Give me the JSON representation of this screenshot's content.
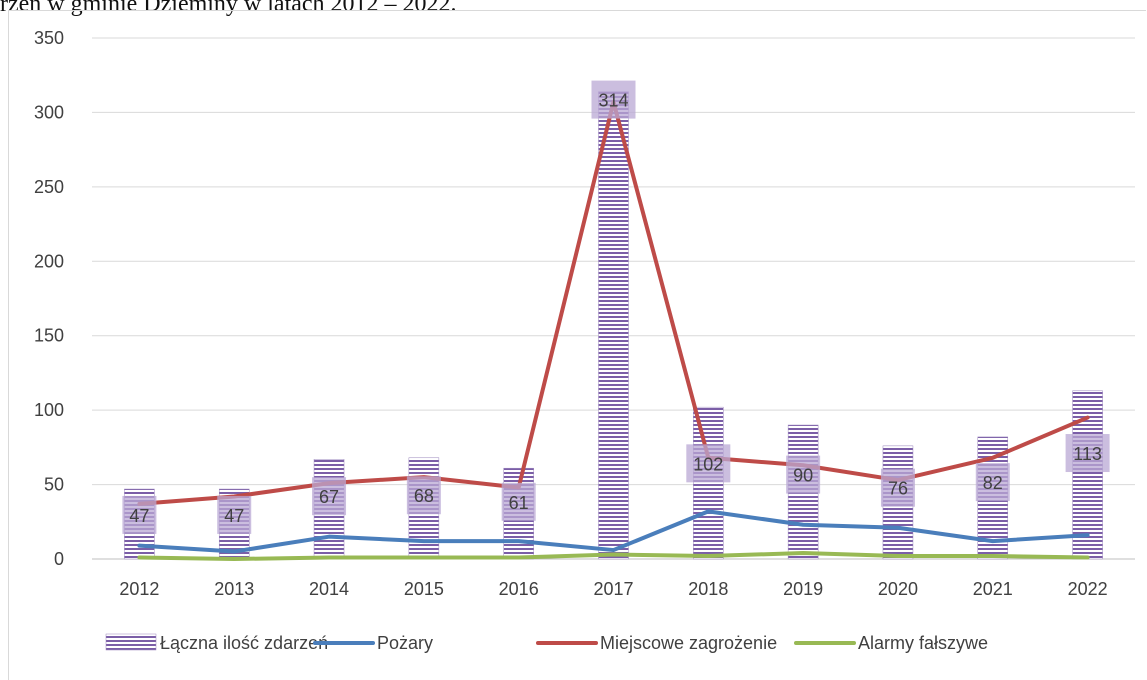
{
  "caption": "rzeń w gminie Dzieminy w latach 2012 – 2022.",
  "chart_data": {
    "type": "bar",
    "categories": [
      "2012",
      "2013",
      "2014",
      "2015",
      "2016",
      "2017",
      "2018",
      "2019",
      "2020",
      "2021",
      "2022"
    ],
    "ylim": [
      0,
      350
    ],
    "yticks": [
      0,
      50,
      100,
      150,
      200,
      250,
      300,
      350
    ],
    "grid": true,
    "legend_position": "bottom",
    "series": [
      {
        "name": "Łączna ilość zdarzeń",
        "kind": "bar",
        "color": "#7b5ea7",
        "values": [
          47,
          47,
          67,
          68,
          61,
          314,
          102,
          90,
          76,
          82,
          113
        ],
        "labels": [
          "47",
          "47",
          "67",
          "68",
          "61",
          "314",
          "102",
          "90",
          "76",
          "82",
          "113"
        ]
      },
      {
        "name": "Pożary",
        "kind": "line",
        "color": "#4a7ebb",
        "values": [
          9,
          5,
          15,
          12,
          12,
          6,
          32,
          23,
          21,
          12,
          16
        ]
      },
      {
        "name": "Miejscowe zagrożenie",
        "kind": "line",
        "color": "#be4b48",
        "values": [
          37,
          42,
          51,
          55,
          48,
          307,
          68,
          63,
          53,
          68,
          95
        ]
      },
      {
        "name": "Alarmy fałszywe",
        "kind": "line",
        "color": "#98b954",
        "values": [
          1,
          0,
          1,
          1,
          1,
          3,
          2,
          4,
          2,
          2,
          1
        ]
      }
    ]
  }
}
